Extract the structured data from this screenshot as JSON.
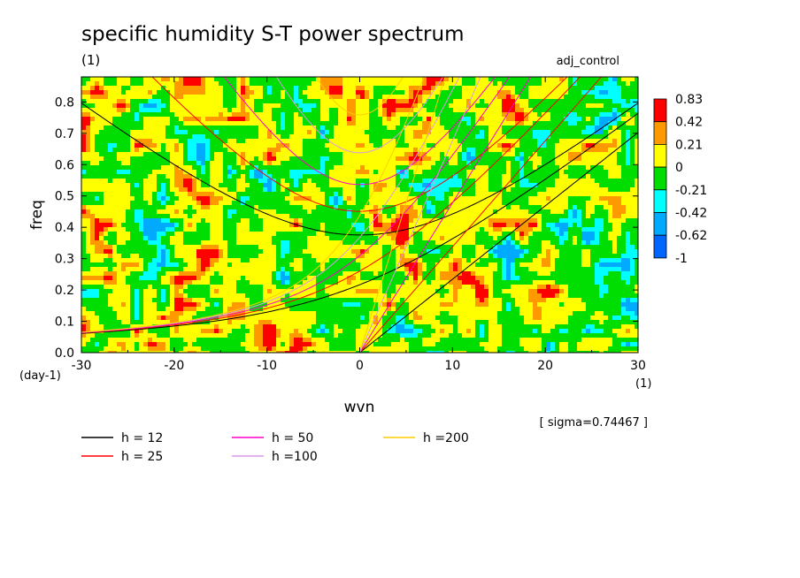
{
  "chart_data": {
    "type": "heatmap",
    "title": "specific humidity S-T power spectrum",
    "subtitle_left": "(1)",
    "subtitle_right": "adj_control",
    "xlabel": "wvn",
    "ylabel": "freq",
    "x_unit": "(1)",
    "y_unit": "(day-1)",
    "xlim": [
      -30,
      30
    ],
    "ylim": [
      0,
      0.88
    ],
    "x_ticks": [
      "-30",
      "-20",
      "-10",
      "0",
      "10",
      "20",
      "30"
    ],
    "y_ticks": [
      "0.0",
      "0.1",
      "0.2",
      "0.3",
      "0.4",
      "0.5",
      "0.6",
      "0.7",
      "0.8"
    ],
    "annotation": "[ sigma=0.74467 ]",
    "colorbar": {
      "labels": [
        "0.83",
        "0.42",
        "0.21",
        "0",
        "-0.21",
        "-0.42",
        "-0.62",
        "-1"
      ],
      "colors": [
        "#ff0000",
        "#ff9900",
        "#ffff00",
        "#00dd00",
        "#00ffff",
        "#00aaff",
        "#0066ff"
      ]
    },
    "series": [
      {
        "name": "h = 12",
        "color": "#000000"
      },
      {
        "name": "h = 25",
        "color": "#ff0000"
      },
      {
        "name": "h = 50",
        "color": "#ff00cc"
      },
      {
        "name": "h =100",
        "color": "#d99ae6"
      },
      {
        "name": "h =200",
        "color": "#ffcc00"
      }
    ]
  }
}
